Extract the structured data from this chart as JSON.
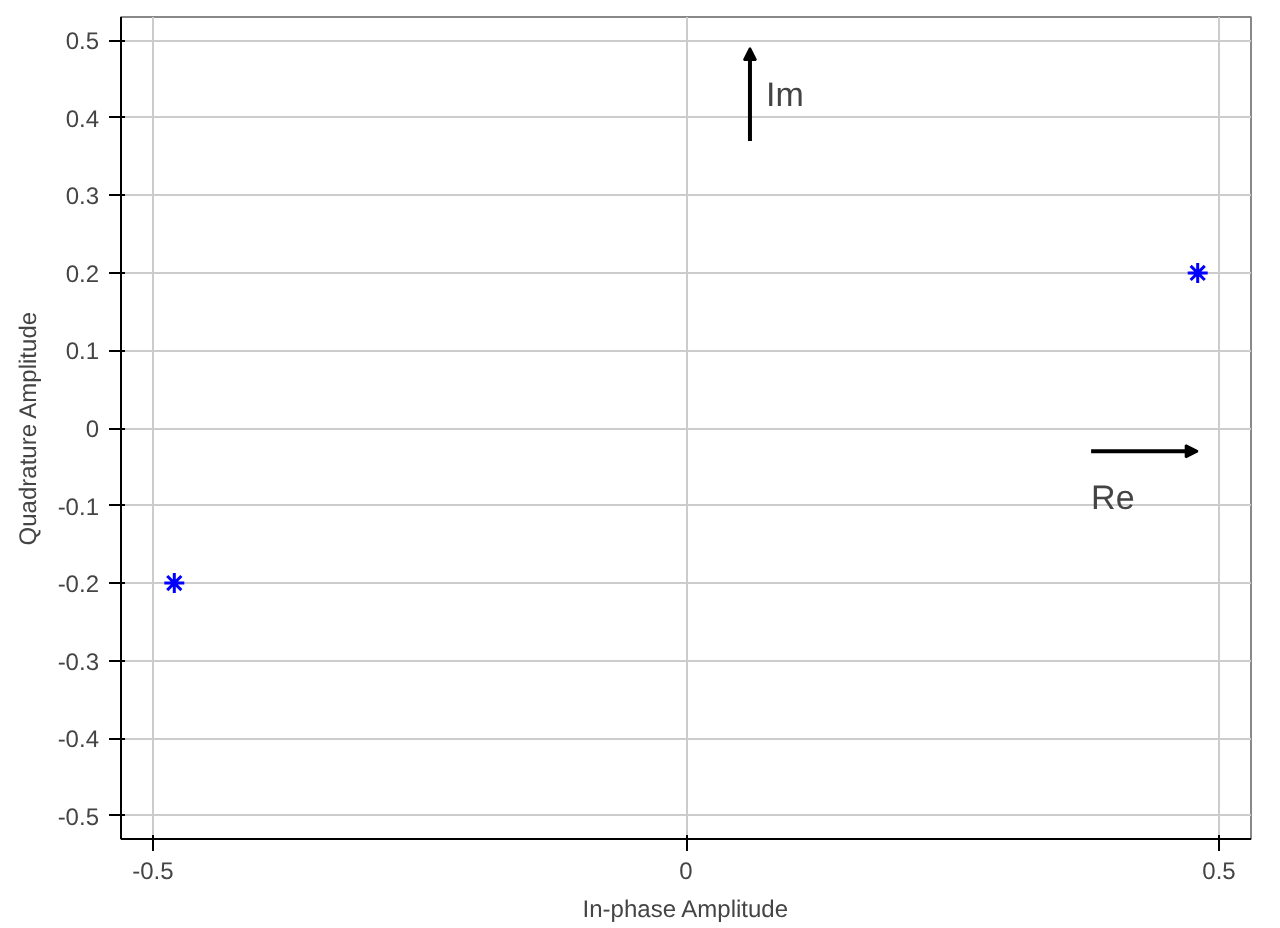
{
  "chart_data": {
    "type": "scatter",
    "xlabel": "In-phase Amplitude",
    "ylabel": "Quadrature Amplitude",
    "x": [
      -0.48,
      0.48
    ],
    "series": [
      {
        "color": "#0000ff",
        "values": [
          -0.2,
          0.2
        ]
      }
    ],
    "marker": "cross",
    "grid": true,
    "xlim": [
      -0.53,
      0.53
    ],
    "xticks": [
      -0.5,
      0,
      0.5
    ],
    "ylim": [
      -0.53,
      0.53
    ],
    "yticks": [
      -0.5,
      -0.4,
      -0.3,
      -0.2,
      -0.1,
      0,
      0.1,
      0.2,
      0.3,
      0.4,
      0.5
    ],
    "annotations": [
      "Im",
      "Re"
    ]
  }
}
